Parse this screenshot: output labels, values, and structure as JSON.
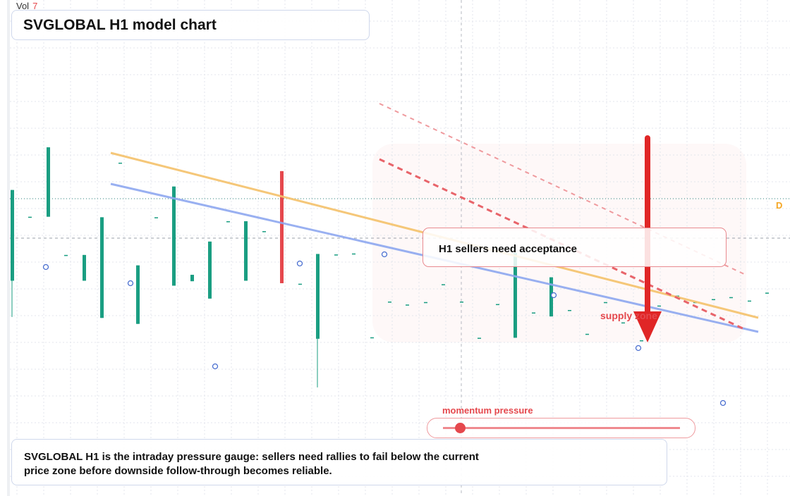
{
  "volume": {
    "label": "Vol",
    "value": "7"
  },
  "title": "SVGLOBAL H1 model chart",
  "callout": "H1 sellers need acceptance",
  "zone_label": "supply zone",
  "price_tag": "D",
  "momentum": {
    "label": "momentum pressure",
    "level": 0.07
  },
  "note": "SVGLOBAL H1 is the intraday pressure gauge: sellers need rallies to fail below the current price zone before downside follow-through becomes reliable.",
  "colors": {
    "up": "#1a9e82",
    "down": "#e5484d",
    "trend_upper": "#f5c26b",
    "trend_lower": "#8ea8f0",
    "arrow": "#e02626"
  },
  "chart_data": {
    "type": "candlestick",
    "y_scale": "screen-normalized",
    "candles": [
      {
        "o": 0.434,
        "h": 0.617,
        "l": 0.361,
        "c": 0.617
      },
      {
        "o": 0.563,
        "h": 0.563,
        "l": 0.563,
        "c": 0.563
      },
      {
        "o": 0.563,
        "h": 0.703,
        "l": 0.563,
        "c": 0.703
      },
      {
        "o": 0.486,
        "h": 0.486,
        "l": 0.486,
        "c": 0.486
      },
      {
        "o": 0.434,
        "h": 0.486,
        "l": 0.434,
        "c": 0.486
      },
      {
        "o": 0.359,
        "h": 0.562,
        "l": 0.359,
        "c": 0.562
      },
      {
        "o": 0.672,
        "h": 0.672,
        "l": 0.672,
        "c": 0.672
      },
      {
        "o": 0.347,
        "h": 0.465,
        "l": 0.347,
        "c": 0.465
      },
      {
        "o": 0.562,
        "h": 0.562,
        "l": 0.562,
        "c": 0.562
      },
      {
        "o": 0.424,
        "h": 0.624,
        "l": 0.424,
        "c": 0.624
      },
      {
        "o": 0.433,
        "h": 0.446,
        "l": 0.433,
        "c": 0.446
      },
      {
        "o": 0.398,
        "h": 0.513,
        "l": 0.398,
        "c": 0.513
      },
      {
        "o": 0.554,
        "h": 0.554,
        "l": 0.554,
        "c": 0.554
      },
      {
        "o": 0.434,
        "h": 0.554,
        "l": 0.434,
        "c": 0.554
      },
      {
        "o": 0.534,
        "h": 0.534,
        "l": 0.534,
        "c": 0.534
      },
      {
        "o": 0.655,
        "h": 0.655,
        "l": 0.429,
        "c": 0.429
      },
      {
        "o": 0.428,
        "h": 0.428,
        "l": 0.428,
        "c": 0.428
      },
      {
        "o": 0.317,
        "h": 0.488,
        "l": 0.219,
        "c": 0.488
      },
      {
        "o": 0.487,
        "h": 0.487,
        "l": 0.487,
        "c": 0.487
      },
      {
        "o": 0.489,
        "h": 0.489,
        "l": 0.489,
        "c": 0.489
      },
      {
        "o": 0.32,
        "h": 0.32,
        "l": 0.32,
        "c": 0.32
      },
      {
        "o": 0.392,
        "h": 0.392,
        "l": 0.392,
        "c": 0.392
      },
      {
        "o": 0.386,
        "h": 0.386,
        "l": 0.386,
        "c": 0.386
      },
      {
        "o": 0.391,
        "h": 0.391,
        "l": 0.391,
        "c": 0.391
      },
      {
        "o": 0.427,
        "h": 0.427,
        "l": 0.427,
        "c": 0.427
      },
      {
        "o": 0.392,
        "h": 0.392,
        "l": 0.392,
        "c": 0.392
      },
      {
        "o": 0.319,
        "h": 0.319,
        "l": 0.319,
        "c": 0.319
      },
      {
        "o": 0.387,
        "h": 0.387,
        "l": 0.387,
        "c": 0.387
      },
      {
        "o": 0.319,
        "h": 0.49,
        "l": 0.319,
        "c": 0.49
      },
      {
        "o": 0.37,
        "h": 0.37,
        "l": 0.37,
        "c": 0.37
      },
      {
        "o": 0.362,
        "h": 0.441,
        "l": 0.362,
        "c": 0.441
      },
      {
        "o": 0.375,
        "h": 0.375,
        "l": 0.375,
        "c": 0.375
      },
      {
        "o": 0.327,
        "h": 0.327,
        "l": 0.327,
        "c": 0.327
      },
      {
        "o": 0.391,
        "h": 0.391,
        "l": 0.391,
        "c": 0.391
      },
      {
        "o": 0.35,
        "h": 0.35,
        "l": 0.35,
        "c": 0.35
      },
      {
        "o": 0.314,
        "h": 0.314,
        "l": 0.314,
        "c": 0.314
      },
      {
        "o": 0.384,
        "h": 0.384,
        "l": 0.384,
        "c": 0.384
      },
      {
        "o": 0.404,
        "h": 0.404,
        "l": 0.404,
        "c": 0.404
      },
      {
        "o": 0.391,
        "h": 0.391,
        "l": 0.391,
        "c": 0.391
      },
      {
        "o": 0.397,
        "h": 0.397,
        "l": 0.397,
        "c": 0.397
      },
      {
        "o": 0.401,
        "h": 0.401,
        "l": 0.401,
        "c": 0.401
      },
      {
        "o": 0.394,
        "h": 0.394,
        "l": 0.394,
        "c": 0.394
      },
      {
        "o": 0.41,
        "h": 0.41,
        "l": 0.41,
        "c": 0.41
      }
    ]
  }
}
